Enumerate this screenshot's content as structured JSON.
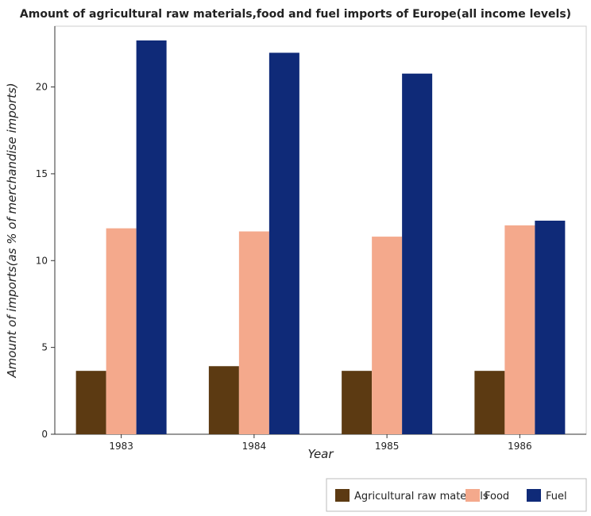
{
  "chart_data": {
    "type": "bar",
    "title": "Amount of agricultural raw materials,food and fuel imports of Europe(all income levels)",
    "xlabel": "Year",
    "ylabel": "Amount of imports(as % of merchandise imports)",
    "categories": [
      "1983",
      "1984",
      "1985",
      "1986"
    ],
    "ylim": [
      0,
      23.5
    ],
    "yticks": [
      0,
      5,
      10,
      15,
      20
    ],
    "ytick_labels": [
      "0",
      "5",
      "10",
      "15",
      "20"
    ],
    "grid": false,
    "legend_position": "bottom-right",
    "series": [
      {
        "name": "Agricultural raw materials",
        "color": "#5c3a12",
        "values": [
          3.65,
          3.92,
          3.65,
          3.65
        ]
      },
      {
        "name": "Food",
        "color": "#f4a98c",
        "values": [
          11.86,
          11.68,
          11.38,
          12.03
        ]
      },
      {
        "name": "Fuel",
        "color": "#0f2a78",
        "values": [
          22.68,
          21.97,
          20.77,
          12.3
        ]
      }
    ]
  }
}
